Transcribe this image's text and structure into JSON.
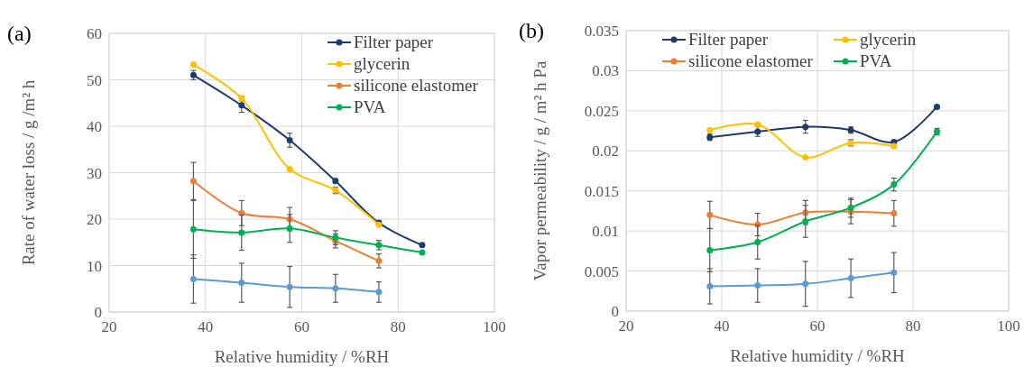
{
  "chart_data": [
    {
      "type": "line",
      "title": "(a)",
      "xlabel": "Relative humidity / %RH",
      "ylabel": "Rate of water loss / g /m² h",
      "xlim": [
        20,
        100
      ],
      "xticks": [
        20,
        40,
        60,
        80,
        100
      ],
      "ylim": [
        0,
        60
      ],
      "yticks": [
        0,
        10,
        20,
        30,
        40,
        50,
        60
      ],
      "grid": true,
      "legend": "top right",
      "marker": "circle",
      "line_style": "solid",
      "x": [
        37.5,
        47.5,
        57.5,
        67,
        76,
        85
      ],
      "series": [
        {
          "name": "Filter paper",
          "color": "#1f3a6e",
          "values": [
            51,
            44.5,
            37,
            28.2,
            19.2,
            14.4
          ],
          "errors": [
            1,
            1.5,
            1.5,
            0.5,
            0.5,
            null
          ]
        },
        {
          "name": "glycerin",
          "color": "#ffc000",
          "values": [
            53.3,
            46,
            30.8,
            26.2,
            18.8,
            null
          ],
          "errors": [
            null,
            0.5,
            null,
            0.7,
            null,
            null
          ]
        },
        {
          "name": "silicone elastomer",
          "color": "#ed7d31",
          "values": [
            28.2,
            21.3,
            20,
            15.3,
            11,
            null
          ],
          "errors": [
            4,
            2.7,
            2.5,
            1.5,
            1.5,
            null
          ]
        },
        {
          "name": "PVA",
          "color": "#00b050",
          "values": [
            17.8,
            17.1,
            18,
            16,
            14.4,
            12.8
          ],
          "errors": [
            6.2,
            3.8,
            3,
            1.5,
            1,
            null
          ]
        },
        {
          "color": "#5b9bd5",
          "values": [
            7.1,
            6.3,
            5.4,
            5.1,
            4.3,
            null
          ],
          "errors": [
            5.2,
            4.2,
            4.4,
            3,
            2.2,
            null
          ]
        }
      ]
    },
    {
      "type": "line",
      "title": "(b)",
      "xlabel": "Relative humidity / %RH",
      "ylabel": "Vapor permeability /  g / m² h Pa",
      "xlim": [
        20,
        100
      ],
      "xticks": [
        20,
        40,
        60,
        80,
        100
      ],
      "ylim": [
        0,
        0.035
      ],
      "yticks": [
        0,
        0.005,
        0.01,
        0.015,
        0.02,
        0.025,
        0.03,
        0.035
      ],
      "grid": true,
      "legend": "top",
      "marker": "circle",
      "line_style": "solid",
      "x": [
        37.5,
        47.5,
        57.5,
        67,
        76,
        85
      ],
      "series": [
        {
          "name": "Filter paper",
          "color": "#1f3a6e",
          "values": [
            0.0217,
            0.0224,
            0.023,
            0.0226,
            0.0211,
            0.0255
          ],
          "errors": [
            0.0004,
            0.0006,
            0.0008,
            0.0004,
            0.0002,
            0.0002
          ]
        },
        {
          "name": "glycerin",
          "color": "#ffc000",
          "values": [
            0.0226,
            0.0233,
            0.0192,
            0.021,
            0.0206,
            null
          ],
          "errors": [
            null,
            null,
            null,
            0.0004,
            0.0002,
            null
          ]
        },
        {
          "name": "silicone elastomer",
          "color": "#ed7d31",
          "values": [
            0.012,
            0.0108,
            0.0123,
            0.0124,
            0.0122,
            null
          ],
          "errors": [
            0.0017,
            0.0014,
            0.0015,
            0.0015,
            0.0016,
            null
          ]
        },
        {
          "name": "PVA",
          "color": "#00b050",
          "values": [
            0.0076,
            0.0086,
            0.0112,
            0.0129,
            0.0158,
            0.0224
          ],
          "errors": [
            0.0027,
            0.0021,
            0.002,
            0.0012,
            0.0008,
            0.0004
          ]
        },
        {
          "color": "#5b9bd5",
          "values": [
            0.0031,
            0.0032,
            0.0034,
            0.0041,
            0.0048,
            null
          ],
          "errors": [
            0.0022,
            0.0021,
            0.0028,
            0.0024,
            0.0025,
            null
          ]
        }
      ]
    }
  ]
}
